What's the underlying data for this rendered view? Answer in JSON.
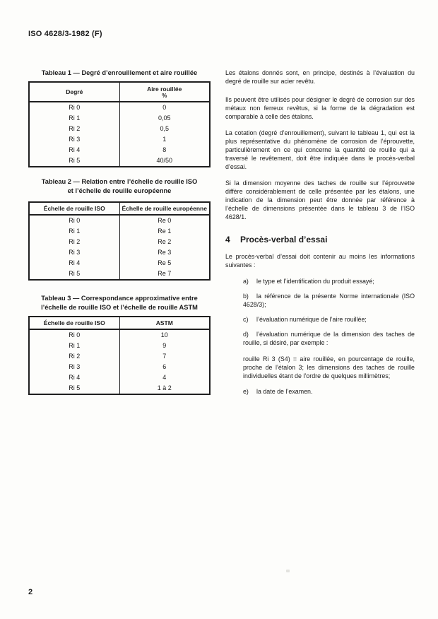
{
  "page": {
    "header": "ISO 4628/3-1982 (F)",
    "page_number": "2"
  },
  "tables": [
    {
      "caption_lines": [
        "Tableau 1 — Degré d’enrouillement et aire rouillée"
      ],
      "headers": [
        "Degré",
        "Aire rouillée"
      ],
      "unit": "%",
      "rows": [
        [
          "Ri 0",
          "0"
        ],
        [
          "Ri 1",
          "0,05"
        ],
        [
          "Ri 2",
          "0,5"
        ],
        [
          "Ri 3",
          "1"
        ],
        [
          "Ri 4",
          "8"
        ],
        [
          "Ri 5",
          "40/50"
        ]
      ]
    },
    {
      "caption_lines": [
        "Tableau 2 — Relation entre l’échelle de rouille ISO",
        "et l’échelle de rouille européenne"
      ],
      "headers": [
        "Échelle de rouille ISO",
        "Échelle de rouille européenne"
      ],
      "rows": [
        [
          "Ri 0",
          "Re 0"
        ],
        [
          "Ri 1",
          "Re 1"
        ],
        [
          "Ri 2",
          "Re 2"
        ],
        [
          "Ri 3",
          "Re 3"
        ],
        [
          "Ri 4",
          "Re 5"
        ],
        [
          "Ri 5",
          "Re 7"
        ]
      ]
    },
    {
      "caption_lines": [
        "Tableau 3 — Correspondance approximative entre",
        "l’échelle de rouille ISO et l’échelle de rouille ASTM"
      ],
      "headers": [
        "Échelle de rouille ISO",
        "ASTM"
      ],
      "rows": [
        [
          "Ri 0",
          "10"
        ],
        [
          "Ri 1",
          "9"
        ],
        [
          "Ri 2",
          "7"
        ],
        [
          "Ri 3",
          "6"
        ],
        [
          "Ri 4",
          "4"
        ],
        [
          "Ri 5",
          "1 à 2"
        ]
      ]
    }
  ],
  "article": {
    "paragraphs": [
      "Les étalons donnés sont, en principe, destinés à l’évaluation du degré de rouille sur acier revêtu.",
      "Ils peuvent être utilisés pour désigner le degré de corrosion sur des métaux non ferreux revêtus, si la forme de la dégradation est comparable à celle des étalons.",
      "La cotation (degré d’enrouillement), suivant le tableau 1, qui est la plus représentative du phénomène de corrosion de l’éprouvette, particulièrement en ce qui concerne la quantité de rouille qui a traversé le revêtement, doit être indiquée dans le procès-verbal d’essai.",
      "Si la dimension moyenne des taches de rouille sur l’éprouvette diffère considérablement de celle présentée par les étalons, une indication de la dimension peut être donnée par référence à l’échelle de dimensions présentée dans le tableau 3 de l’ISO 4628/1."
    ],
    "section": {
      "number": "4",
      "title": "Procès-verbal d’essai",
      "intro": "Le procès-verbal d’essai doit contenir au moins les informations suivantes :",
      "items": [
        {
          "marker": "a)",
          "text": "le type et l’identification du produit essayé;"
        },
        {
          "marker": "b)",
          "text": "la référence de la présente Norme internationale (ISO 4628/3);"
        },
        {
          "marker": "c)",
          "text": "l’évaluation numérique de l’aire rouillée;"
        },
        {
          "marker": "d)",
          "text": "l’évaluation numérique de la dimension des taches de rouille, si désiré, par exemple :"
        },
        {
          "marker": "e)",
          "text": "la date de l’examen."
        }
      ],
      "example": "rouille Ri 3 (S4) = aire rouillée, en pourcentage de rouille, proche de l’étalon 3; les dimensions des taches de rouille individuelles étant de l’ordre de quelques millimètres;"
    }
  }
}
